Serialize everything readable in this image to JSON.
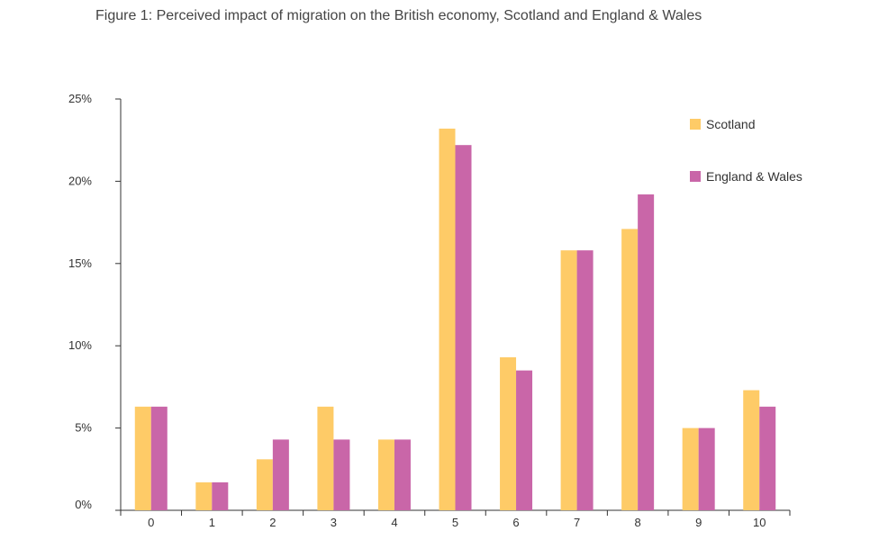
{
  "chart_data": {
    "type": "bar",
    "title": "Figure 1: Perceived impact of migration on the British economy, Scotland and England & Wales",
    "xlabel": "",
    "ylabel": "",
    "categories": [
      "0",
      "1",
      "2",
      "3",
      "4",
      "5",
      "6",
      "7",
      "8",
      "9",
      "10"
    ],
    "series": [
      {
        "name": "Scotland",
        "color": "#FECB67",
        "values": [
          6.3,
          1.7,
          3.1,
          6.3,
          4.3,
          23.2,
          9.3,
          15.8,
          17.1,
          5.0,
          7.3
        ]
      },
      {
        "name": "England & Wales",
        "color": "#C966A8",
        "values": [
          6.3,
          1.7,
          4.3,
          4.3,
          4.3,
          22.2,
          8.5,
          15.8,
          19.2,
          5.0,
          6.3
        ]
      }
    ],
    "ylim": [
      0,
      25
    ],
    "yticks": [
      "0%",
      "5%",
      "10%",
      "15%",
      "20%",
      "25%"
    ],
    "grid": false,
    "legend_position": "top-right"
  }
}
